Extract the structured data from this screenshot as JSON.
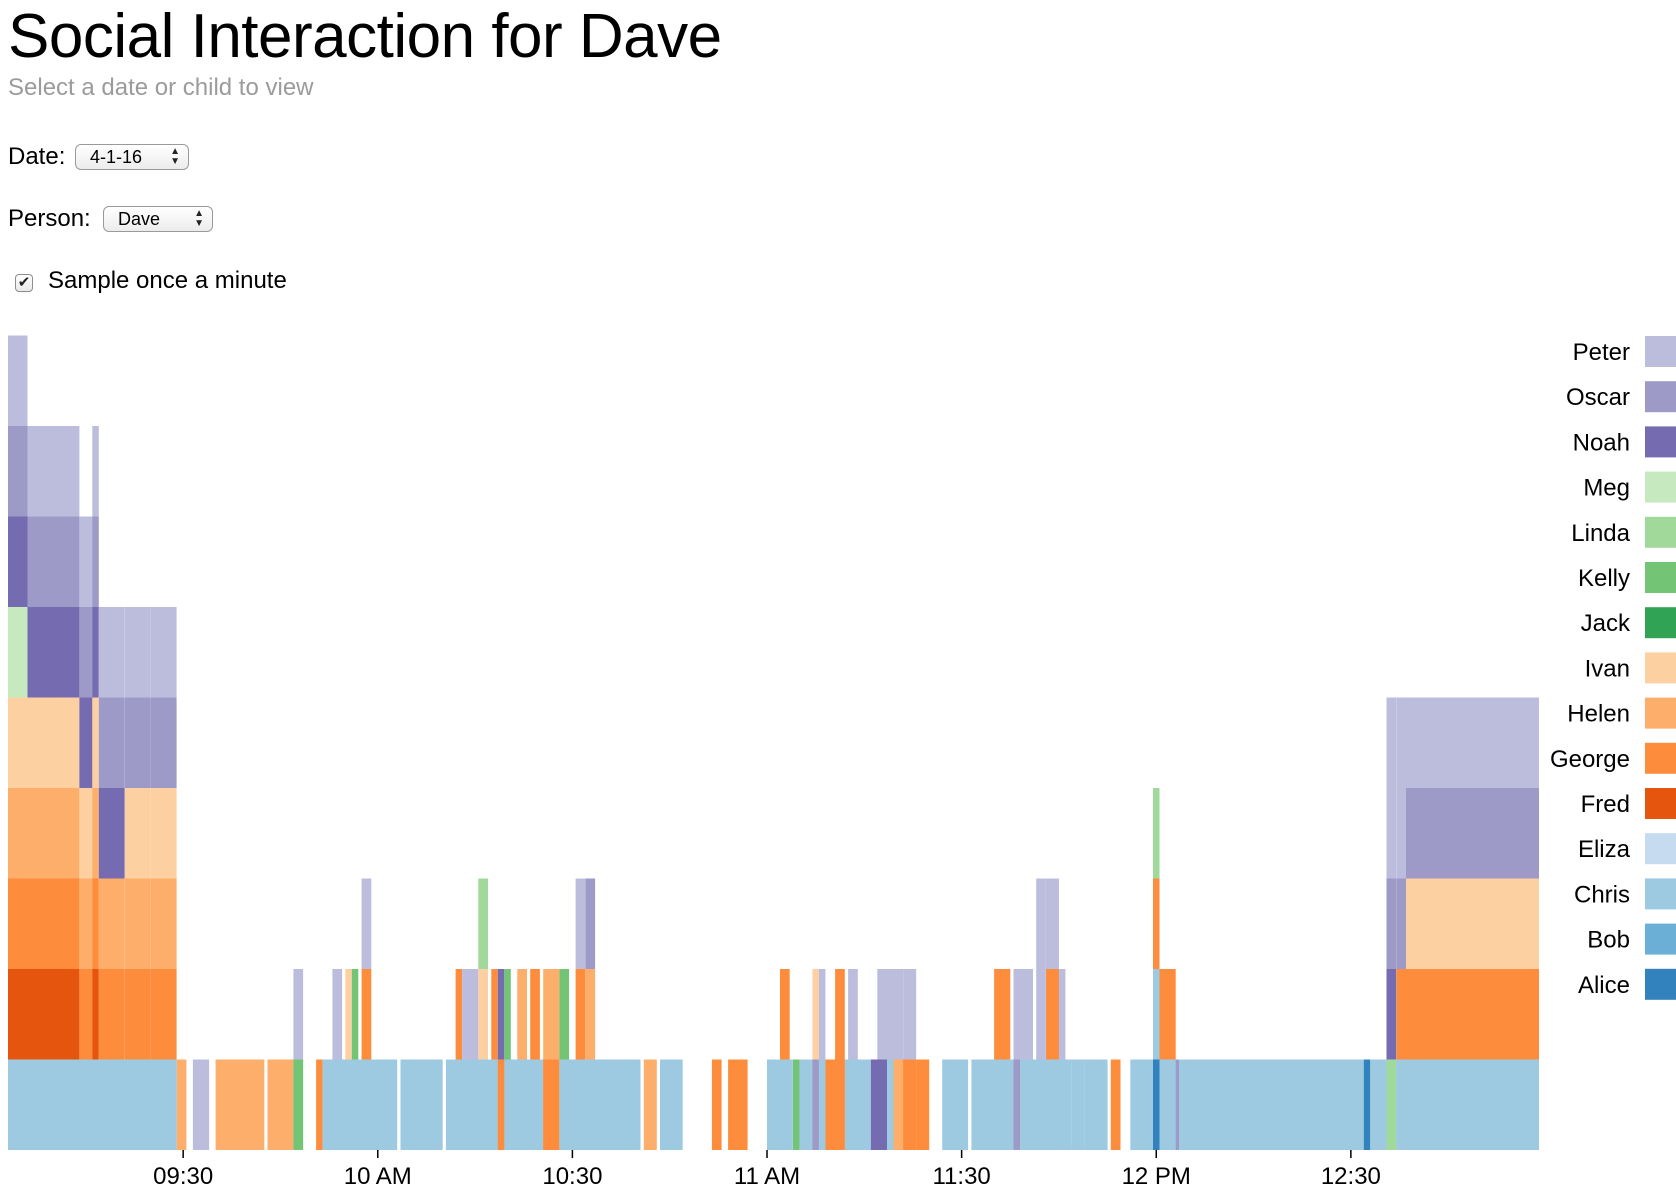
{
  "header": {
    "title": "Social Interaction for Dave",
    "subtitle": "Select a date or child to view"
  },
  "controls": {
    "date_label": "Date:",
    "date_value": "4-1-16",
    "person_label": "Person:",
    "person_value": "Dave",
    "sample_label": "Sample once a minute",
    "sample_checked": true
  },
  "icons": {
    "select_arrows": "up-down-chevron-icon",
    "checkmark": "checkmark-icon"
  },
  "chart_data": {
    "type": "bar",
    "stacked": true,
    "x_unit": "minute",
    "x_ticks": [
      {
        "label": "09:30",
        "minute": 570
      },
      {
        "label": "10 AM",
        "minute": 600
      },
      {
        "label": "10:30",
        "minute": 630
      },
      {
        "label": "11 AM",
        "minute": 660
      },
      {
        "label": "11:30",
        "minute": 690
      },
      {
        "label": "12 PM",
        "minute": 720
      },
      {
        "label": "12:30",
        "minute": 750
      }
    ],
    "xlim": [
      543,
      779
    ],
    "legend_position": "right",
    "series": [
      {
        "name": "Alice",
        "color": "#3182bd"
      },
      {
        "name": "Bob",
        "color": "#6baed6"
      },
      {
        "name": "Chris",
        "color": "#9ecae1"
      },
      {
        "name": "Eliza",
        "color": "#c6dbef"
      },
      {
        "name": "Fred",
        "color": "#e6550d"
      },
      {
        "name": "George",
        "color": "#fd8d3c"
      },
      {
        "name": "Helen",
        "color": "#fdae6b"
      },
      {
        "name": "Ivan",
        "color": "#fdd0a2"
      },
      {
        "name": "Jack",
        "color": "#31a354"
      },
      {
        "name": "Kelly",
        "color": "#74c476"
      },
      {
        "name": "Linda",
        "color": "#a1d99b"
      },
      {
        "name": "Meg",
        "color": "#c7e9c0"
      },
      {
        "name": "Noah",
        "color": "#756bb1"
      },
      {
        "name": "Oscar",
        "color": "#9e9ac8"
      },
      {
        "name": "Peter",
        "color": "#bcbddc"
      }
    ],
    "intervals": [
      {
        "start": 543,
        "end": 569,
        "stack": [
          "Chris"
        ]
      },
      {
        "start": 569,
        "end": 570.5,
        "stack": [
          "Helen"
        ]
      },
      {
        "start": 571.5,
        "end": 574,
        "stack": [
          "Peter"
        ]
      },
      {
        "start": 575,
        "end": 582.5,
        "stack": [
          "Helen"
        ]
      },
      {
        "start": 583,
        "end": 587,
        "stack": [
          "Helen"
        ]
      },
      {
        "start": 587,
        "end": 588.5,
        "stack": [
          "Kelly"
        ]
      },
      {
        "start": 590.5,
        "end": 591.5,
        "stack": [
          "George"
        ]
      },
      {
        "start": 591.5,
        "end": 603,
        "stack": [
          "Chris"
        ]
      },
      {
        "start": 603.5,
        "end": 610,
        "stack": [
          "Chris"
        ]
      },
      {
        "start": 610.5,
        "end": 618.5,
        "stack": [
          "Chris"
        ]
      },
      {
        "start": 618.5,
        "end": 620,
        "stack": [
          "George"
        ]
      },
      {
        "start": 620,
        "end": 625.5,
        "stack": [
          "Chris"
        ]
      },
      {
        "start": 625.5,
        "end": 627,
        "stack": [
          "George"
        ]
      },
      {
        "start": 628,
        "end": 640.5,
        "stack": [
          "Chris"
        ]
      },
      {
        "start": 641,
        "end": 643,
        "stack": [
          "Helen"
        ]
      },
      {
        "start": 643.5,
        "end": 647,
        "stack": [
          "Chris"
        ]
      },
      {
        "start": 651.5,
        "end": 653,
        "stack": [
          "George"
        ]
      },
      {
        "start": 654,
        "end": 657,
        "stack": [
          "George"
        ]
      },
      {
        "start": 660,
        "end": 664,
        "stack": [
          "Chris"
        ]
      },
      {
        "start": 664,
        "end": 665,
        "stack": [
          "Kelly"
        ]
      },
      {
        "start": 665,
        "end": 667,
        "stack": [
          "Chris"
        ]
      },
      {
        "start": 667,
        "end": 669,
        "stack": [
          "Oscar"
        ]
      },
      {
        "start": 669,
        "end": 672,
        "stack": [
          "George"
        ]
      },
      {
        "start": 672,
        "end": 676,
        "stack": [
          "Chris"
        ]
      },
      {
        "start": 676,
        "end": 678,
        "stack": [
          "Noah"
        ]
      },
      {
        "start": 678,
        "end": 680,
        "stack": [
          "Chris"
        ]
      },
      {
        "start": 680,
        "end": 681,
        "stack": [
          "Helen"
        ]
      },
      {
        "start": 681,
        "end": 683,
        "stack": [
          "George"
        ]
      },
      {
        "start": 683,
        "end": 685,
        "stack": [
          "George"
        ]
      },
      {
        "start": 687,
        "end": 691,
        "stack": [
          "Chris"
        ]
      },
      {
        "start": 691.5,
        "end": 698,
        "stack": [
          "Chris"
        ]
      },
      {
        "start": 698,
        "end": 699,
        "stack": [
          "Oscar"
        ]
      },
      {
        "start": 699,
        "end": 707,
        "stack": [
          "Chris"
        ]
      },
      {
        "start": 707,
        "end": 709,
        "stack": [
          "Chris"
        ]
      },
      {
        "start": 709,
        "end": 712.5,
        "stack": [
          "Chris"
        ]
      },
      {
        "start": 713,
        "end": 714.5,
        "stack": [
          "George"
        ]
      },
      {
        "start": 716,
        "end": 719.5,
        "stack": [
          "Chris"
        ]
      },
      {
        "start": 719.5,
        "end": 720.5,
        "stack": [
          "Alice"
        ]
      },
      {
        "start": 720.5,
        "end": 722.5,
        "stack": [
          "Chris"
        ]
      },
      {
        "start": 722.5,
        "end": 723.5,
        "stack": [
          "Oscar"
        ]
      },
      {
        "start": 723.5,
        "end": 752,
        "stack": [
          "Chris"
        ]
      },
      {
        "start": 752,
        "end": 753,
        "stack": [
          "Alice"
        ]
      },
      {
        "start": 753,
        "end": 756,
        "stack": [
          "Chris"
        ]
      },
      {
        "start": 756,
        "end": 757,
        "stack": [
          "Linda"
        ]
      },
      {
        "start": 757,
        "end": 779,
        "stack": [
          "Chris"
        ]
      },
      {
        "start": 543,
        "end": 546,
        "stack": [
          "Chris",
          "Fred",
          "George",
          "Helen",
          "Ivan",
          "Meg",
          "Noah",
          "Oscar",
          "Peter"
        ]
      },
      {
        "start": 546,
        "end": 554,
        "stack": [
          "Chris",
          "Fred",
          "George",
          "Helen",
          "Ivan",
          "Noah",
          "Oscar",
          "Peter"
        ]
      },
      {
        "start": 554,
        "end": 556,
        "stack": [
          "Chris",
          "George",
          "Helen",
          "Ivan",
          "Noah",
          "Oscar",
          "Peter"
        ]
      },
      {
        "start": 556,
        "end": 557,
        "stack": [
          "Chris",
          "Fred",
          "George",
          "Helen",
          "Ivan",
          "Noah",
          "Oscar",
          "Peter"
        ]
      },
      {
        "start": 557,
        "end": 561,
        "stack": [
          "Chris",
          "George",
          "Helen",
          "Noah",
          "Oscar",
          "Peter"
        ]
      },
      {
        "start": 561,
        "end": 565,
        "stack": [
          "Chris",
          "George",
          "Helen",
          "Ivan",
          "Oscar",
          "Peter"
        ]
      },
      {
        "start": 565,
        "end": 569,
        "stack": [
          "Chris",
          "George",
          "Helen",
          "Ivan",
          "Oscar",
          "Peter"
        ]
      },
      {
        "start": 587,
        "end": 588.5,
        "stack": [
          "Kelly",
          "Peter"
        ]
      },
      {
        "start": 593,
        "end": 594.5,
        "stack": [
          "Chris",
          "Peter"
        ]
      },
      {
        "start": 595,
        "end": 596,
        "stack": [
          "Chris",
          "Ivan"
        ]
      },
      {
        "start": 596,
        "end": 597,
        "stack": [
          "Chris",
          "Kelly"
        ]
      },
      {
        "start": 597.5,
        "end": 599,
        "stack": [
          "Chris",
          "George",
          "Peter"
        ]
      },
      {
        "start": 612,
        "end": 613,
        "stack": [
          "Chris",
          "George"
        ]
      },
      {
        "start": 613,
        "end": 615.5,
        "stack": [
          "Chris",
          "Peter"
        ]
      },
      {
        "start": 615.5,
        "end": 617,
        "stack": [
          "Chris",
          "Ivan",
          "Linda"
        ]
      },
      {
        "start": 617.5,
        "end": 618.5,
        "stack": [
          "Chris",
          "George"
        ]
      },
      {
        "start": 618.5,
        "end": 619.5,
        "stack": [
          "George",
          "Noah"
        ]
      },
      {
        "start": 619.5,
        "end": 620.5,
        "stack": [
          "Chris",
          "Kelly"
        ]
      },
      {
        "start": 621.5,
        "end": 623,
        "stack": [
          "Chris",
          "Helen"
        ]
      },
      {
        "start": 623.5,
        "end": 625,
        "stack": [
          "Chris",
          "George"
        ]
      },
      {
        "start": 625.5,
        "end": 628,
        "stack": [
          "George",
          "Helen"
        ]
      },
      {
        "start": 628,
        "end": 629.5,
        "stack": [
          "Chris",
          "Kelly"
        ]
      },
      {
        "start": 630.5,
        "end": 632,
        "stack": [
          "Chris",
          "George",
          "Peter"
        ]
      },
      {
        "start": 632,
        "end": 633.5,
        "stack": [
          "Chris",
          "Helen",
          "Oscar"
        ]
      },
      {
        "start": 662,
        "end": 663.5,
        "stack": [
          "Chris",
          "George"
        ]
      },
      {
        "start": 667,
        "end": 668,
        "stack": [
          "Oscar",
          "Ivan"
        ]
      },
      {
        "start": 668,
        "end": 669,
        "stack": [
          "Chris",
          "Peter"
        ]
      },
      {
        "start": 670.5,
        "end": 672,
        "stack": [
          "George",
          "George"
        ]
      },
      {
        "start": 672.5,
        "end": 674,
        "stack": [
          "Chris",
          "Peter"
        ]
      },
      {
        "start": 677,
        "end": 678.5,
        "stack": [
          "Noah",
          "Peter"
        ]
      },
      {
        "start": 678.5,
        "end": 680,
        "stack": [
          "Chris",
          "Peter"
        ]
      },
      {
        "start": 679.5,
        "end": 681,
        "stack": [
          "Helen",
          "Peter"
        ]
      },
      {
        "start": 681,
        "end": 683,
        "stack": [
          "George",
          "Peter"
        ]
      },
      {
        "start": 695,
        "end": 697.5,
        "stack": [
          "Chris",
          "George"
        ]
      },
      {
        "start": 698,
        "end": 699,
        "stack": [
          "Oscar",
          "Peter"
        ]
      },
      {
        "start": 699,
        "end": 701,
        "stack": [
          "Chris",
          "Peter"
        ]
      },
      {
        "start": 701.5,
        "end": 703,
        "stack": [
          "Chris",
          "Peter",
          "Peter"
        ]
      },
      {
        "start": 703,
        "end": 705,
        "stack": [
          "Chris",
          "George",
          "Peter"
        ]
      },
      {
        "start": 705,
        "end": 706,
        "stack": [
          "Chris",
          "Peter"
        ]
      },
      {
        "start": 719.5,
        "end": 720.5,
        "stack": [
          "Alice",
          "Chris",
          "George",
          "Linda"
        ]
      },
      {
        "start": 720.5,
        "end": 723,
        "stack": [
          "Chris",
          "George"
        ]
      },
      {
        "start": 755.5,
        "end": 757,
        "stack": [
          "Linda",
          "Noah",
          "Oscar",
          "Peter",
          "Peter"
        ]
      },
      {
        "start": 757,
        "end": 758.5,
        "stack": [
          "Chris",
          "George",
          "Oscar",
          "Peter",
          "Peter"
        ]
      },
      {
        "start": 758.5,
        "end": 760.5,
        "stack": [
          "Chris",
          "George",
          "Ivan",
          "Oscar",
          "Peter"
        ]
      },
      {
        "start": 760.5,
        "end": 779,
        "stack": [
          "Chris",
          "George",
          "Ivan",
          "Oscar",
          "Peter"
        ]
      }
    ]
  }
}
